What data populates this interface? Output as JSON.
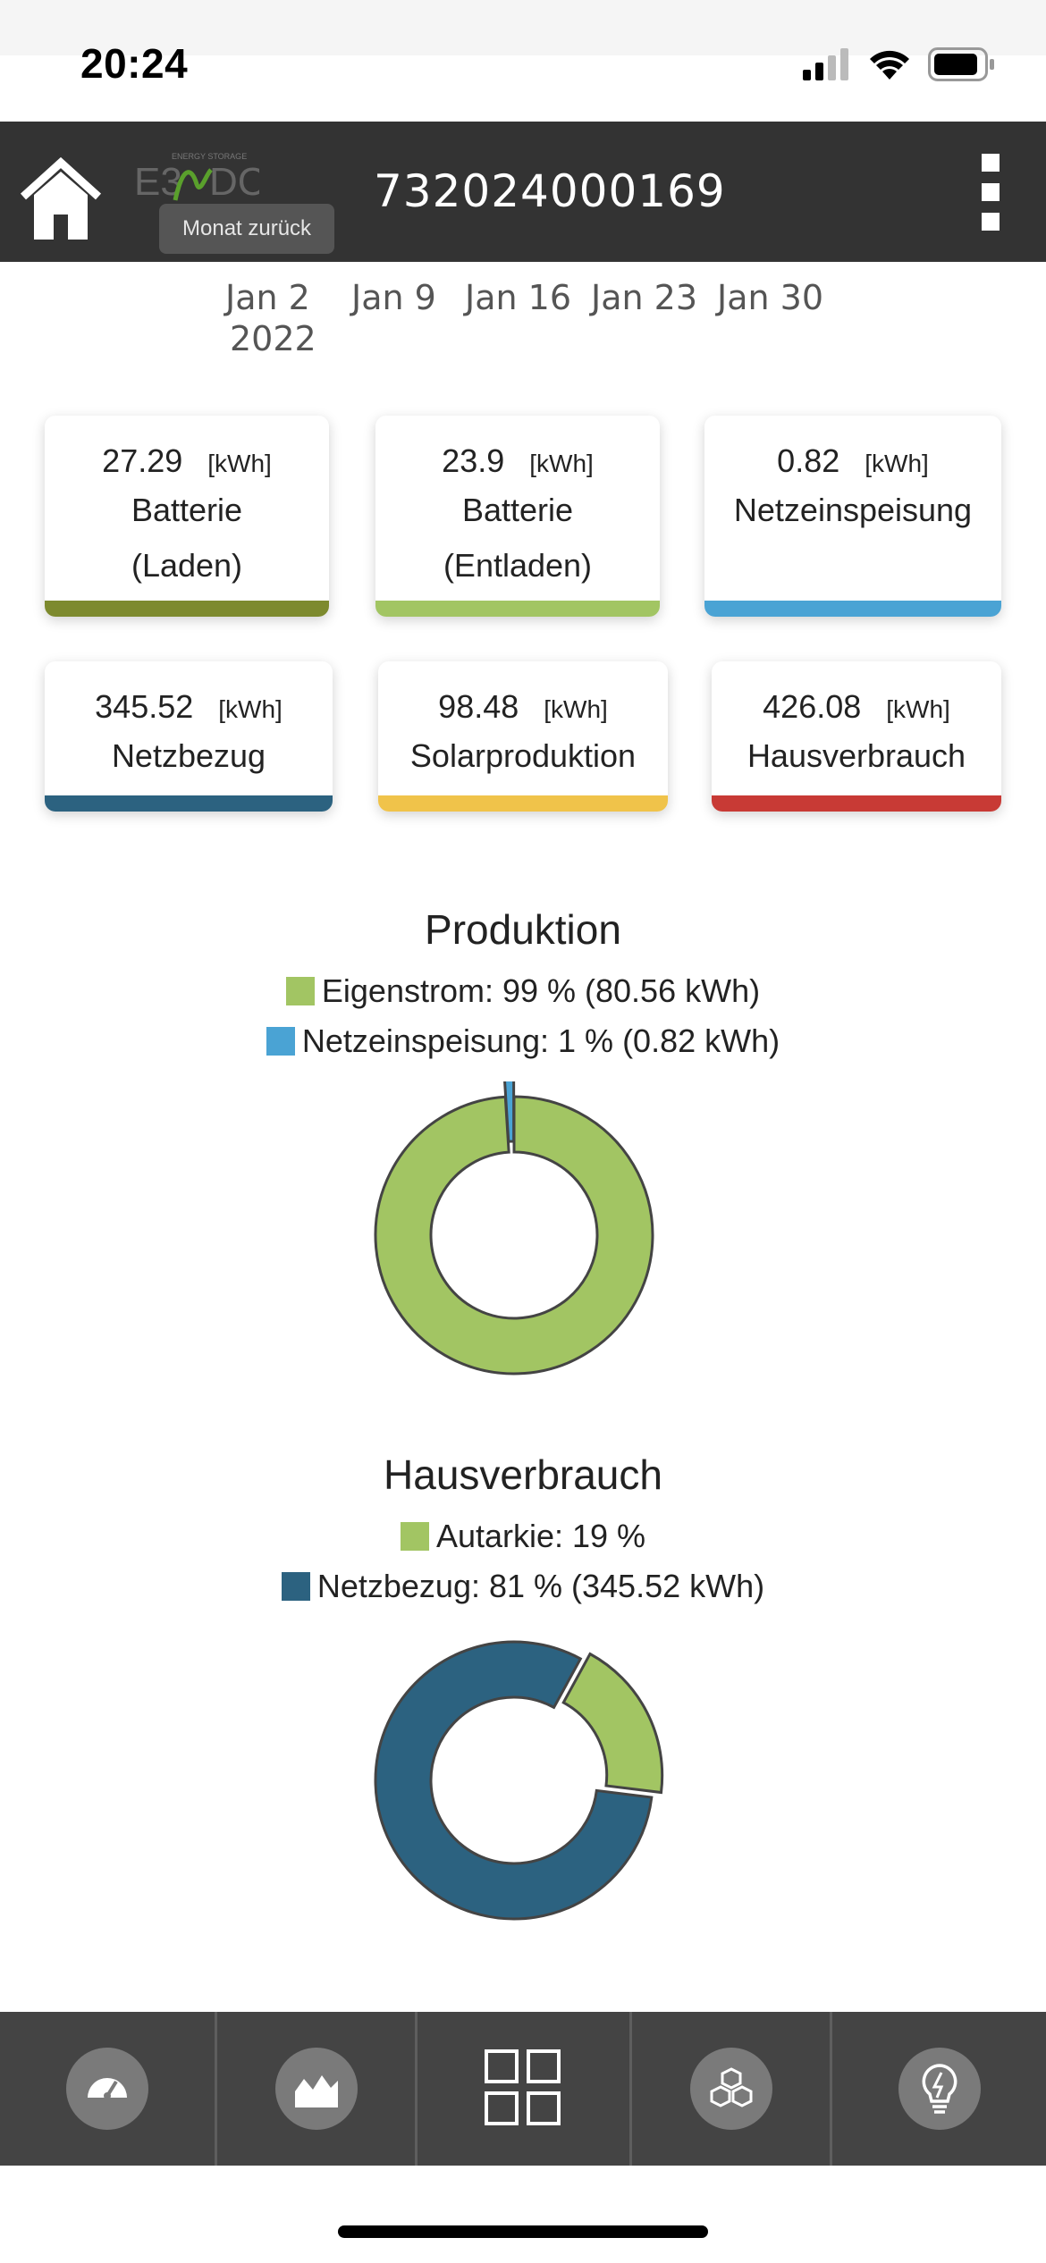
{
  "status_bar": {
    "time": "20:24"
  },
  "header": {
    "device_id": "732024000169",
    "logo_text": "E3/DC",
    "logo_subtext": "ENERGY STORAGE",
    "tooltip": "Monat zurück"
  },
  "date_axis": {
    "ticks": [
      "Jan 2",
      "Jan 9",
      "Jan 16",
      "Jan 23",
      "Jan 30"
    ],
    "year": "2022"
  },
  "cards": [
    {
      "value": "27.29",
      "unit": "[kWh]",
      "label_line1": "Batterie",
      "label_line2": "(Laden)",
      "color": "#7d8a2e"
    },
    {
      "value": "23.9",
      "unit": "[kWh]",
      "label_line1": "Batterie",
      "label_line2": "(Entladen)",
      "color": "#a2c563"
    },
    {
      "value": "0.82",
      "unit": "[kWh]",
      "label_line1": "Netzeinspeisung",
      "label_line2": "",
      "color": "#4aa3d4"
    },
    {
      "value": "345.52",
      "unit": "[kWh]",
      "label_line1": "Netzbezug",
      "label_line2": "",
      "color": "#2c6280"
    },
    {
      "value": "98.48",
      "unit": "[kWh]",
      "label_line1": "Solarproduktion",
      "label_line2": "",
      "color": "#f0c34a"
    },
    {
      "value": "426.08",
      "unit": "[kWh]",
      "label_line1": "Hausverbrauch",
      "label_line2": "",
      "color": "#c83a35"
    }
  ],
  "production": {
    "title": "Produktion",
    "legend": [
      {
        "label": "Eigenstrom: 99 % (80.56 kWh)",
        "color": "#a2c563",
        "percent": 99
      },
      {
        "label": "Netzeinspeisung: 1 % (0.82 kWh)",
        "color": "#4aa3d4",
        "percent": 1
      }
    ]
  },
  "consumption": {
    "title": "Hausverbrauch",
    "legend": [
      {
        "label": "Autarkie: 19 %",
        "color": "#a2c563",
        "percent": 19
      },
      {
        "label": "Netzbezug: 81 % (345.52 kWh)",
        "color": "#2c6280",
        "percent": 81
      }
    ]
  },
  "bottom_nav": {
    "items": [
      {
        "icon": "gauge-icon"
      },
      {
        "icon": "area-chart-icon"
      },
      {
        "icon": "grid-icon"
      },
      {
        "icon": "cubes-icon"
      },
      {
        "icon": "lightbulb-icon"
      }
    ]
  }
}
